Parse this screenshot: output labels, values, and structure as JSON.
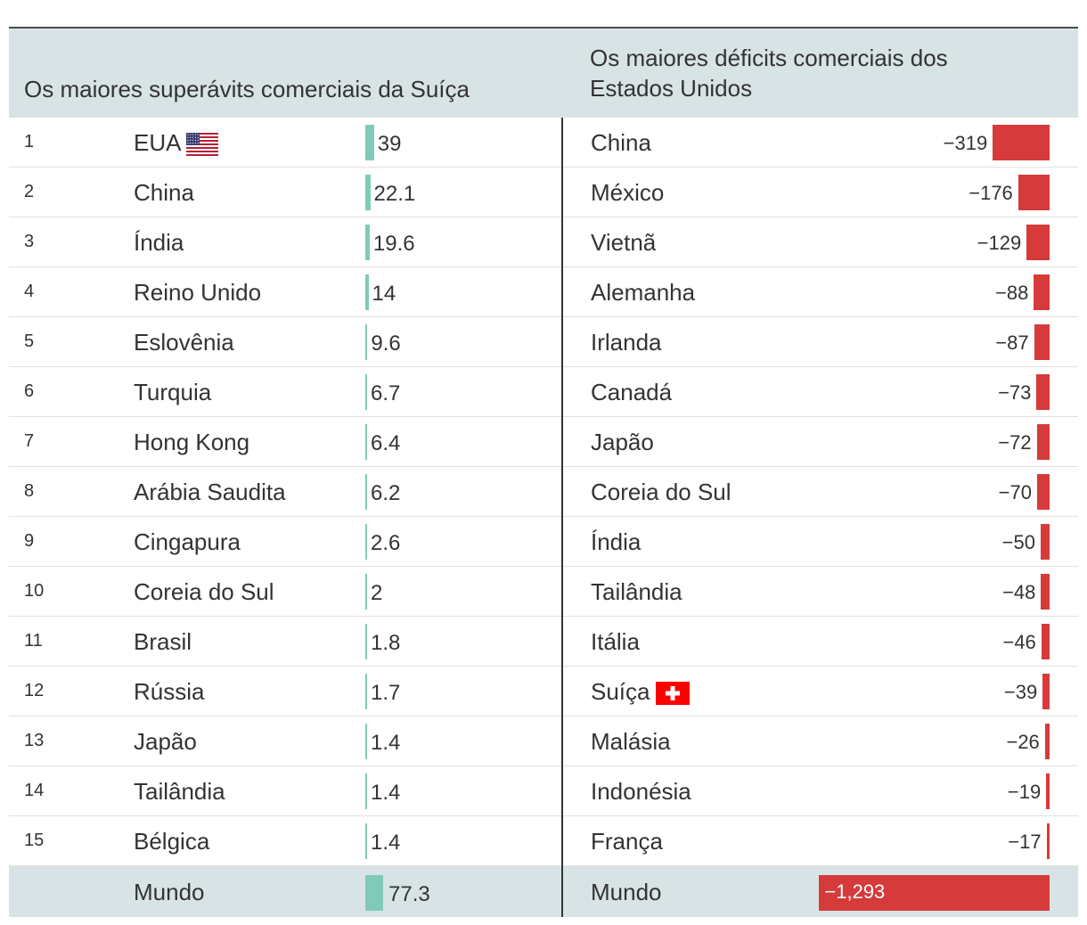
{
  "chart_data": {
    "type": "bar",
    "left": {
      "title": "Os maiores superávits comerciais da Suíça",
      "rows": [
        {
          "rank": "1",
          "name": "EUA",
          "value": 39,
          "label": "39",
          "flag": "us-flag-icon"
        },
        {
          "rank": "2",
          "name": "China",
          "value": 22.1,
          "label": "22.1"
        },
        {
          "rank": "3",
          "name": "Índia",
          "value": 19.6,
          "label": "19.6"
        },
        {
          "rank": "4",
          "name": "Reino Unido",
          "value": 14,
          "label": "14"
        },
        {
          "rank": "5",
          "name": "Eslovênia",
          "value": 9.6,
          "label": "9.6"
        },
        {
          "rank": "6",
          "name": "Turquia",
          "value": 6.7,
          "label": "6.7"
        },
        {
          "rank": "7",
          "name": "Hong Kong",
          "value": 6.4,
          "label": "6.4"
        },
        {
          "rank": "8",
          "name": "Arábia Saudita",
          "value": 6.2,
          "label": "6.2"
        },
        {
          "rank": "9",
          "name": "Cingapura",
          "value": 2.6,
          "label": "2.6"
        },
        {
          "rank": "10",
          "name": "Coreia do Sul",
          "value": 2,
          "label": "2"
        },
        {
          "rank": "11",
          "name": "Brasil",
          "value": 1.8,
          "label": "1.8"
        },
        {
          "rank": "12",
          "name": "Rússia",
          "value": 1.7,
          "label": "1.7"
        },
        {
          "rank": "13",
          "name": "Japão",
          "value": 1.4,
          "label": "1.4"
        },
        {
          "rank": "14",
          "name": "Tailândia",
          "value": 1.4,
          "label": "1.4"
        },
        {
          "rank": "15",
          "name": "Bélgica",
          "value": 1.4,
          "label": "1.4"
        }
      ],
      "total": {
        "name": "Mundo",
        "value": 77.3,
        "label": "77.3"
      }
    },
    "right": {
      "title": "Os maiores déficits comerciais dos Estados Unidos",
      "rows": [
        {
          "name": "China",
          "value": -319,
          "label": "−319"
        },
        {
          "name": "México",
          "value": -176,
          "label": "−176"
        },
        {
          "name": "Vietnã",
          "value": -129,
          "label": "−129"
        },
        {
          "name": "Alemanha",
          "value": -88,
          "label": "−88"
        },
        {
          "name": "Irlanda",
          "value": -87,
          "label": "−87"
        },
        {
          "name": "Canadá",
          "value": -73,
          "label": "−73"
        },
        {
          "name": "Japão",
          "value": -72,
          "label": "−72"
        },
        {
          "name": "Coreia do Sul",
          "value": -70,
          "label": "−70"
        },
        {
          "name": "Índia",
          "value": -50,
          "label": "−50"
        },
        {
          "name": "Tailândia",
          "value": -48,
          "label": "−48"
        },
        {
          "name": "Itália",
          "value": -46,
          "label": "−46"
        },
        {
          "name": "Suíça",
          "value": -39,
          "label": "−39",
          "flag": "swiss-flag-icon"
        },
        {
          "name": "Malásia",
          "value": -26,
          "label": "−26"
        },
        {
          "name": "Indonésia",
          "value": -19,
          "label": "−19"
        },
        {
          "name": "França",
          "value": -17,
          "label": "−17"
        }
      ],
      "total": {
        "name": "Mundo",
        "value": -1293,
        "label": "−1,293"
      }
    },
    "colors": {
      "surplus": "#7fcbb8",
      "deficit": "#d63a3a",
      "header": "#d8e3e5"
    }
  }
}
